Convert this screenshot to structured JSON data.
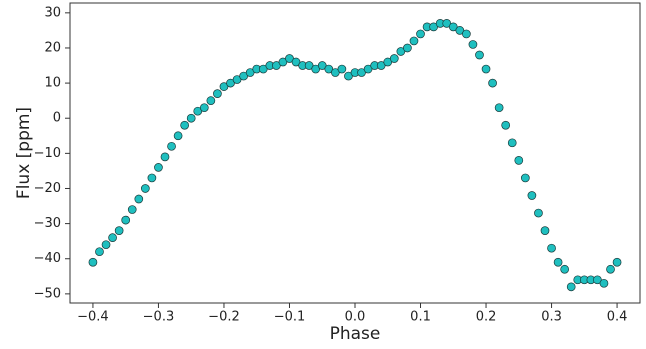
{
  "chart_data": {
    "type": "scatter",
    "xlabel": "Phase",
    "ylabel": "Flux [ppm]",
    "color": "#1fbfbf",
    "edgecolor": "#1a3a3a",
    "xlim": [
      -0.435,
      0.435
    ],
    "ylim": [
      -52.6,
      32.8
    ],
    "xticks": [
      {
        "value": -0.4,
        "label": "−0.4"
      },
      {
        "value": -0.3,
        "label": "−0.3"
      },
      {
        "value": -0.2,
        "label": "−0.2"
      },
      {
        "value": -0.1,
        "label": "−0.1"
      },
      {
        "value": 0,
        "label": "0.0"
      },
      0.1,
      0.2,
      0.3,
      0.4
    ],
    "yticks": [
      {
        "value": -50,
        "label": "−50"
      },
      {
        "value": -40,
        "label": "−40"
      },
      {
        "value": -30,
        "label": "−30"
      },
      {
        "value": -20,
        "label": "−20"
      },
      {
        "value": -10,
        "label": "−10"
      },
      0,
      10,
      20,
      30
    ],
    "x": [
      -0.4,
      -0.39,
      -0.38,
      -0.37,
      -0.36,
      -0.35,
      -0.34,
      -0.33,
      -0.32,
      -0.31,
      -0.3,
      -0.29,
      -0.28,
      -0.27,
      -0.26,
      -0.25,
      -0.24,
      -0.23,
      -0.22,
      -0.21,
      -0.2,
      -0.19,
      -0.18,
      -0.17,
      -0.16,
      -0.15,
      -0.14,
      -0.13,
      -0.12,
      -0.11,
      -0.1,
      -0.09,
      -0.08,
      -0.07,
      -0.06,
      -0.05,
      -0.04,
      -0.03,
      -0.02,
      -0.01,
      0.0,
      0.01,
      0.02,
      0.03,
      0.04,
      0.05,
      0.06,
      0.07,
      0.08,
      0.09,
      0.1,
      0.11,
      0.12,
      0.13,
      0.14,
      0.15,
      0.16,
      0.17,
      0.18,
      0.19,
      0.2,
      0.21,
      0.22,
      0.23,
      0.24,
      0.25,
      0.26,
      0.27,
      0.28,
      0.29,
      0.3,
      0.31,
      0.32,
      0.33,
      0.34,
      0.35,
      0.36,
      0.37,
      0.38,
      0.39,
      0.4
    ],
    "values": [
      -41,
      -38,
      -36,
      -34,
      -32,
      -29,
      -26,
      -23,
      -20,
      -17,
      -14,
      -11,
      -8,
      -5,
      -2,
      0,
      2,
      3,
      5,
      7,
      9,
      10,
      11,
      12,
      13,
      14,
      14,
      15,
      15,
      16,
      17,
      16,
      15,
      15,
      14,
      15,
      14,
      13,
      14,
      12,
      13,
      13,
      14,
      15,
      15,
      16,
      17,
      19,
      20,
      22,
      24,
      26,
      26,
      27,
      27,
      26,
      25,
      24,
      21,
      18,
      14,
      10,
      3,
      -2,
      -7,
      -12,
      -17,
      -22,
      -27,
      -32,
      -37,
      -41,
      -43,
      -48,
      -46,
      -46,
      -46,
      -46,
      -47,
      -43,
      -41
    ]
  }
}
